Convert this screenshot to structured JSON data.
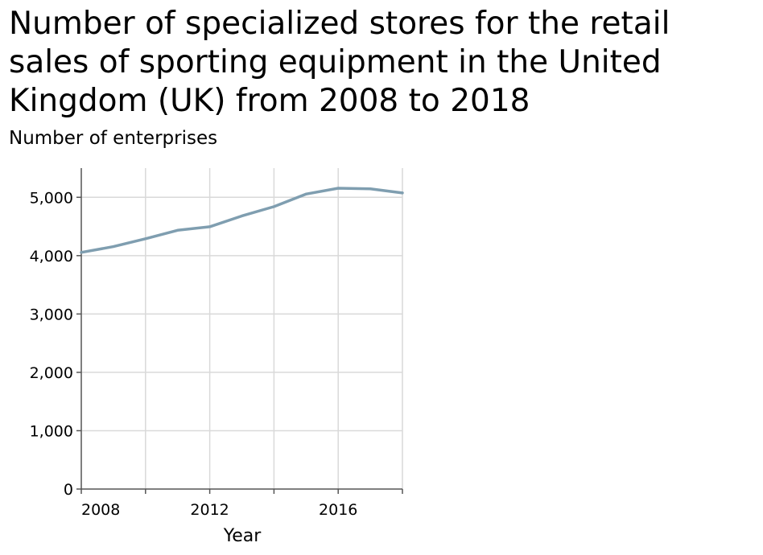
{
  "chart_data": {
    "type": "line",
    "title": "Number of specialized stores for the retail sales of sporting equipment in the United Kingdom (UK) from 2008 to 2018",
    "xlabel": "Year",
    "ylabel": "Number of enterprises",
    "x": [
      2008,
      2009,
      2010,
      2011,
      2012,
      2013,
      2014,
      2015,
      2016,
      2017,
      2018
    ],
    "series": [
      {
        "values": [
          4055,
          4155,
          4290,
          4435,
          4495,
          4680,
          4840,
          5055,
          5155,
          5145,
          5075
        ]
      }
    ],
    "xlim": [
      2008,
      2018
    ],
    "ylim": [
      0,
      5500
    ],
    "xticks": [
      2008,
      2012,
      2016
    ],
    "xtick_labels": [
      "2008",
      "2012",
      "2016"
    ],
    "yticks": [
      0,
      1000,
      2000,
      3000,
      4000,
      5000
    ],
    "ytick_labels": [
      "0",
      "1,000",
      "2,000",
      "3,000",
      "4,000",
      "5,000"
    ],
    "grid": true,
    "line_color": "#7f9eb0",
    "grid_color": "#d9d9d9",
    "axis_color": "#555555"
  }
}
